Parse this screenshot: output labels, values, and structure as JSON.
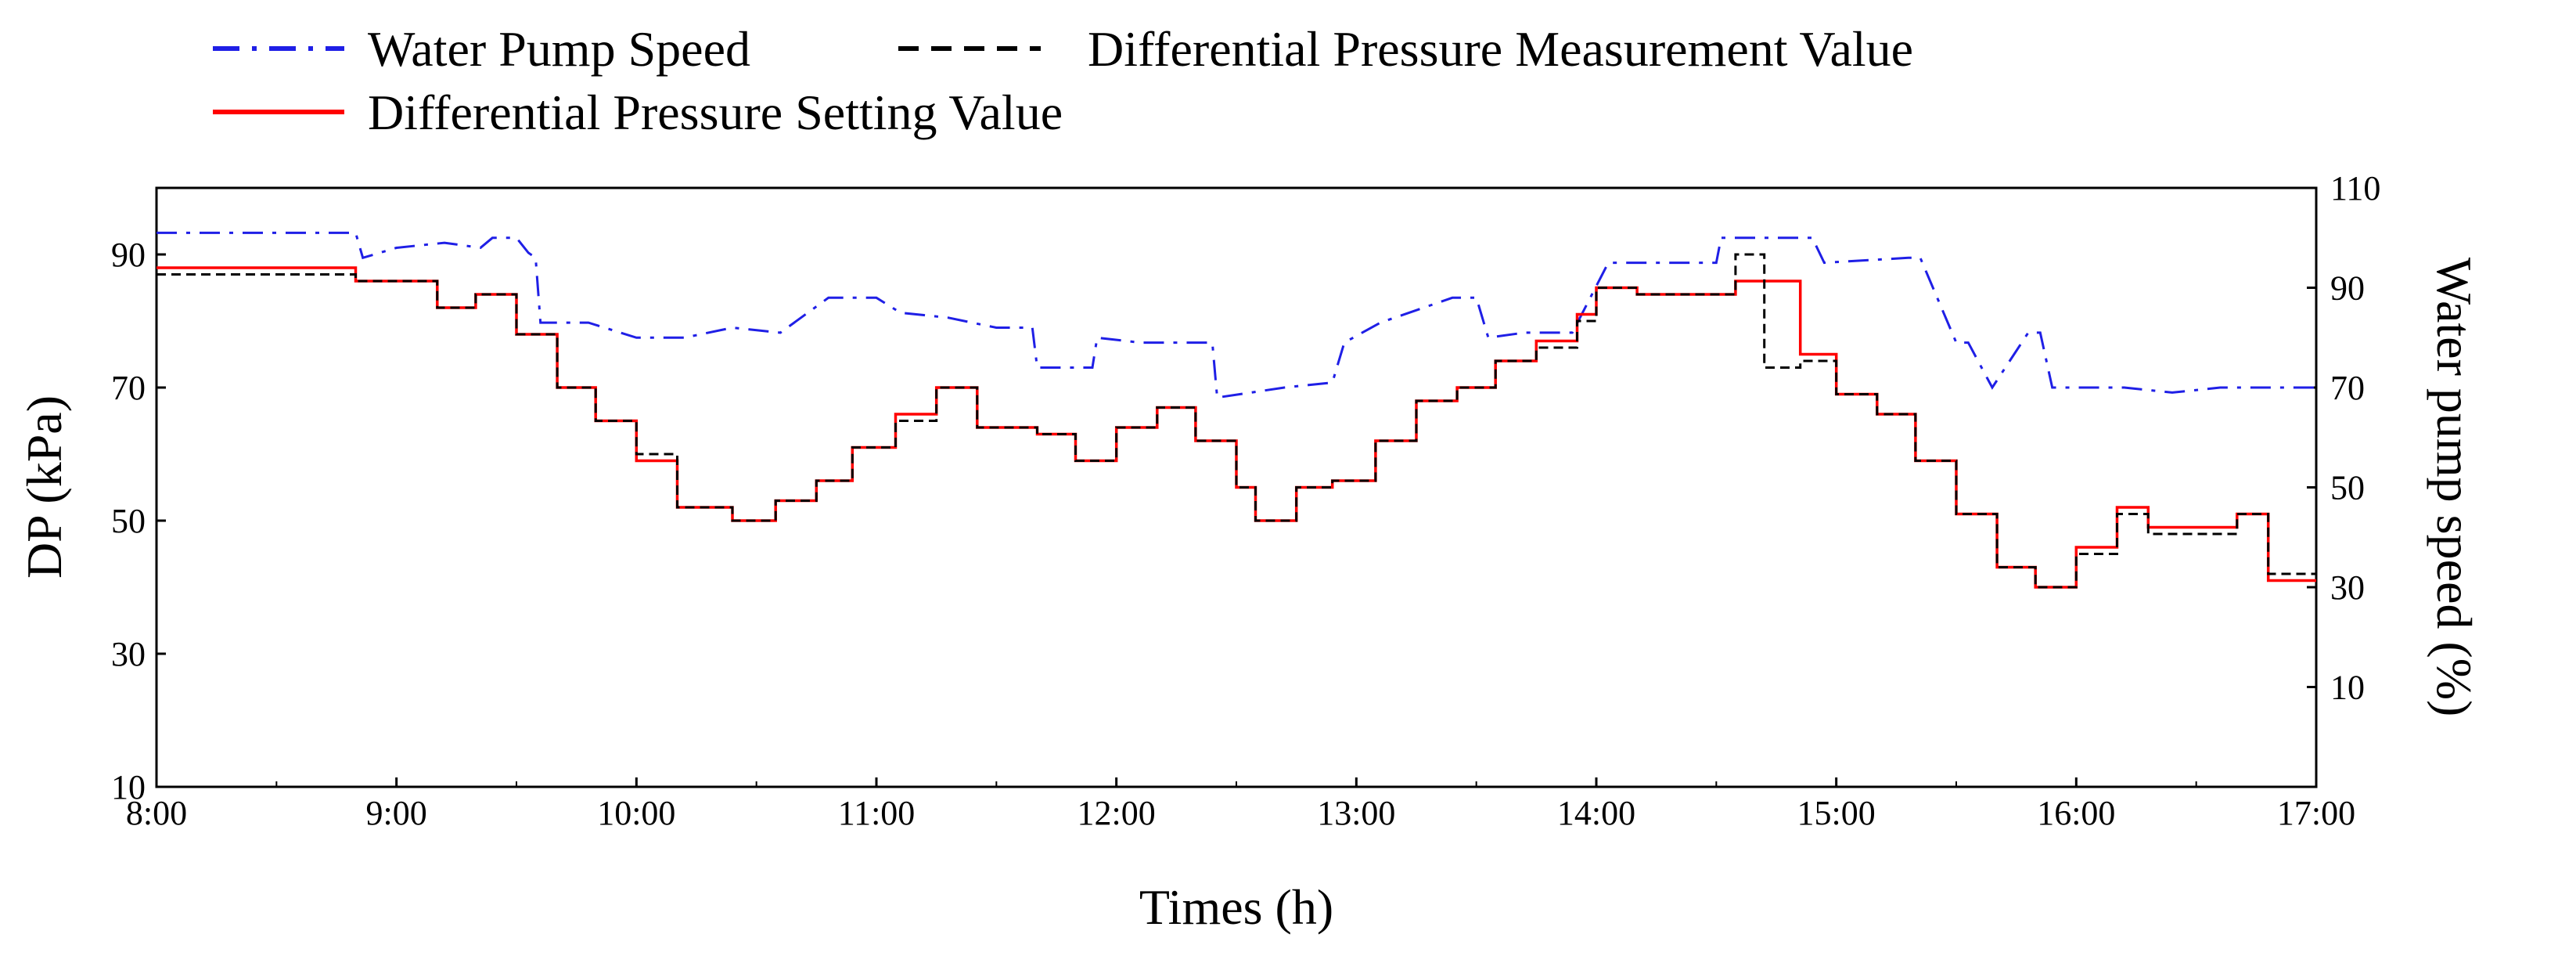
{
  "chart_data": {
    "type": "line",
    "title": "",
    "xlabel": "Times (h)",
    "ylabel": "DP (kPa)",
    "ylabel_right": "Water pump speed (%)",
    "xlim": [
      8,
      17
    ],
    "ylim": [
      10,
      100
    ],
    "ylim_right": [
      -10,
      110
    ],
    "x_ticks": [
      8,
      9,
      10,
      11,
      12,
      13,
      14,
      15,
      16,
      17
    ],
    "x_tick_labels": [
      "8:00",
      "9:00",
      "10:00",
      "11:00",
      "12:00",
      "13:00",
      "14:00",
      "15:00",
      "16:00",
      "17:00"
    ],
    "y_ticks": [
      10,
      30,
      50,
      70,
      90
    ],
    "y_tick_labels": [
      "10",
      "30",
      "50",
      "70",
      "90"
    ],
    "y_right_ticks": [
      10,
      30,
      50,
      70,
      90,
      110
    ],
    "y_right_tick_labels": [
      "10",
      "30",
      "50",
      "70",
      "90",
      "110"
    ],
    "legend": {
      "placement": "top",
      "entries": [
        {
          "label": "Water Pump Speed",
          "series": "pump"
        },
        {
          "label": "Differential Pressure Measurement Value",
          "series": "measured"
        },
        {
          "label": "Differential Pressure Setting Value",
          "series": "setting"
        }
      ]
    },
    "series": [
      {
        "name": "Water Pump Speed",
        "axis": "right",
        "color": "#1f1fe6",
        "style": "dash-dot",
        "step": false,
        "x": [
          8.0,
          8.83,
          8.86,
          9.0,
          9.2,
          9.35,
          9.4,
          9.5,
          9.55,
          9.58,
          9.6,
          9.8,
          10.0,
          10.2,
          10.4,
          10.6,
          10.8,
          11.0,
          11.1,
          11.3,
          11.5,
          11.65,
          11.67,
          11.9,
          11.92,
          12.1,
          12.4,
          12.42,
          12.7,
          12.9,
          12.95,
          13.1,
          13.4,
          13.5,
          13.55,
          13.7,
          13.9,
          14.05,
          14.3,
          14.5,
          14.52,
          14.9,
          14.95,
          15.3,
          15.35,
          15.5,
          15.55,
          15.65,
          15.8,
          15.85,
          15.9,
          16.2,
          16.4,
          16.6,
          16.8,
          17.0
        ],
        "y": [
          101,
          101,
          96,
          98,
          99,
          98,
          100,
          100,
          97,
          96,
          83,
          83,
          80,
          80,
          82,
          81,
          88,
          88,
          85,
          84,
          82,
          82,
          74,
          74,
          80,
          79,
          79,
          68,
          70,
          71,
          79,
          83,
          88,
          88,
          80,
          81,
          81,
          95,
          95,
          95,
          100,
          100,
          95,
          96,
          96,
          79,
          79,
          70,
          81,
          81,
          70,
          70,
          69,
          70,
          70,
          70
        ]
      },
      {
        "name": "Differential Pressure Measurement Value",
        "axis": "left",
        "color": "#000000",
        "style": "dashed",
        "step": true,
        "x": [
          8.0,
          8.83,
          9.0,
          9.17,
          9.33,
          9.5,
          9.67,
          9.83,
          10.0,
          10.17,
          10.4,
          10.58,
          10.75,
          10.9,
          11.08,
          11.25,
          11.42,
          11.67,
          11.83,
          12.0,
          12.17,
          12.33,
          12.5,
          12.58,
          12.75,
          12.9,
          13.08,
          13.25,
          13.42,
          13.58,
          13.75,
          13.92,
          14.0,
          14.17,
          14.33,
          14.58,
          14.6,
          14.7,
          14.85,
          15.0,
          15.17,
          15.33,
          15.5,
          15.67,
          15.83,
          16.0,
          16.17,
          16.3,
          16.5,
          16.67,
          16.8,
          17.0
        ],
        "y": [
          87,
          86,
          86,
          82,
          84,
          78,
          70,
          65,
          60,
          52,
          50,
          53,
          56,
          61,
          65,
          70,
          64,
          63,
          59,
          64,
          67,
          62,
          55,
          50,
          55,
          56,
          62,
          68,
          70,
          74,
          76,
          80,
          85,
          84,
          84,
          90,
          90,
          73,
          74,
          69,
          66,
          59,
          51,
          43,
          40,
          45,
          51,
          48,
          48,
          51,
          42,
          42
        ]
      },
      {
        "name": "Differential Pressure Setting Value",
        "axis": "left",
        "color": "#ff0000",
        "style": "solid",
        "step": true,
        "x": [
          8.0,
          8.83,
          9.0,
          9.17,
          9.33,
          9.5,
          9.67,
          9.83,
          10.0,
          10.17,
          10.4,
          10.58,
          10.75,
          10.9,
          11.08,
          11.25,
          11.42,
          11.67,
          11.83,
          12.0,
          12.17,
          12.33,
          12.5,
          12.58,
          12.75,
          12.9,
          13.08,
          13.25,
          13.42,
          13.58,
          13.75,
          13.92,
          14.0,
          14.17,
          14.33,
          14.58,
          14.6,
          14.7,
          14.85,
          15.0,
          15.17,
          15.33,
          15.5,
          15.67,
          15.83,
          16.0,
          16.17,
          16.3,
          16.5,
          16.67,
          16.8,
          17.0
        ],
        "y": [
          88,
          86,
          86,
          82,
          84,
          78,
          70,
          65,
          59,
          52,
          50,
          53,
          56,
          61,
          66,
          70,
          64,
          63,
          59,
          64,
          67,
          62,
          55,
          50,
          55,
          56,
          62,
          68,
          70,
          74,
          77,
          81,
          85,
          84,
          84,
          86,
          86,
          86,
          75,
          69,
          66,
          59,
          51,
          43,
          40,
          46,
          52,
          49,
          49,
          51,
          41,
          41
        ]
      }
    ]
  }
}
